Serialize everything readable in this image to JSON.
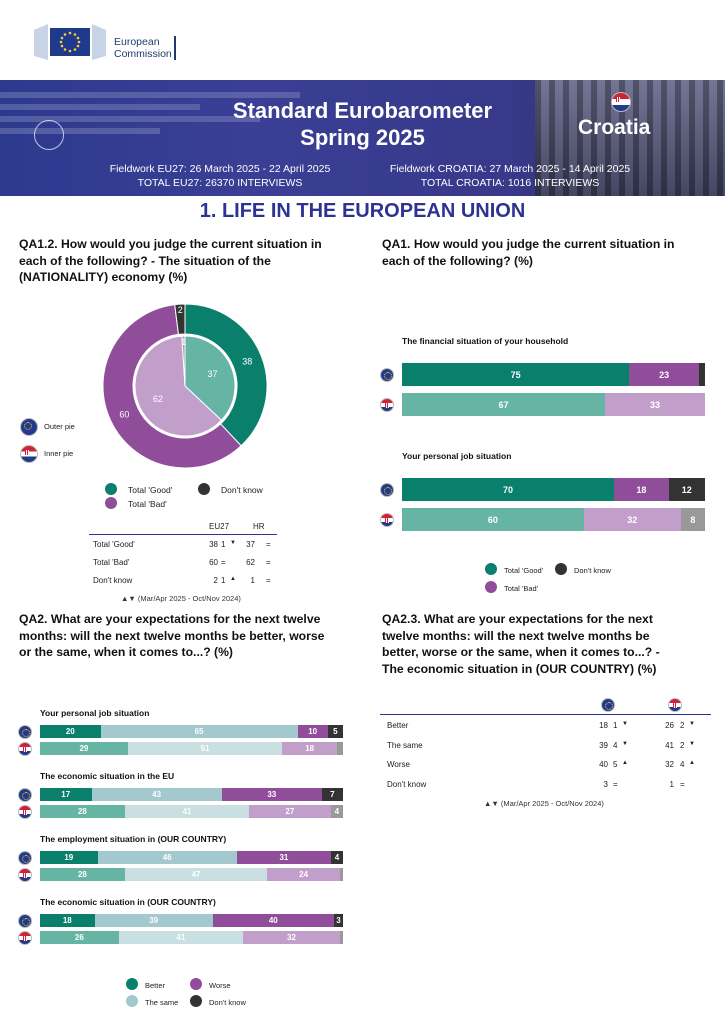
{
  "colors": {
    "better": "#0a7f6b",
    "good_eu": "#0a7f6b",
    "good_hr": "#66b5a4",
    "same_eu": "#a3c9cf",
    "same_hr": "#c9dfe2",
    "bad_eu": "#8f4d9a",
    "bad_hr": "#c29fca",
    "dk_eu": "#333333",
    "dk_hr": "#999999",
    "banner": "#2e3a8e",
    "title": "#2d3394"
  },
  "logo": {
    "line1": "European",
    "line2": "Commission"
  },
  "banner": {
    "title_line1": "Standard Eurobarometer",
    "title_line2": "Spring 2025",
    "country": "Croatia",
    "fieldwork_eu_1": "Fieldwork EU27: 26 March 2025 - 22 April 2025",
    "fieldwork_eu_2": "TOTAL EU27: 26370 INTERVIEWS",
    "fieldwork_hr_1": "Fieldwork CROATIA: 27 March 2025 - 14 April 2025",
    "fieldwork_hr_2": "TOTAL CROATIA: 1016 INTERVIEWS"
  },
  "section_title": "1. LIFE IN THE EUROPEAN UNION",
  "qa12": {
    "q_line1": "QA1.2. How would you judge the current situation in",
    "q_line2": "each of the following? - The situation of the",
    "q_line3": "(NATIONALITY) economy (%)",
    "outer_label": "Outer pie",
    "inner_label": "Inner pie",
    "legend_good": "Total 'Good'",
    "legend_bad": "Total 'Bad'",
    "legend_dk": "Don't know",
    "col_eu": "EU27",
    "col_hr": "HR",
    "rows": [
      {
        "label": "Total 'Good'",
        "eu": "38",
        "eu_change": "1",
        "eu_arrow": "▼",
        "hr": "37",
        "hr_change": "=",
        "hr_arrow": ""
      },
      {
        "label": "Total 'Bad'",
        "eu": "60",
        "eu_change": "=",
        "eu_arrow": "",
        "hr": "62",
        "hr_change": "=",
        "hr_arrow": ""
      },
      {
        "label": "Don't know",
        "eu": "2",
        "eu_change": "1",
        "eu_arrow": "▲",
        "hr": "1",
        "hr_change": "=",
        "hr_arrow": ""
      }
    ],
    "note": "▲▼ (Mar/Apr 2025 - Oct/Nov 2024)"
  },
  "chart_data": [
    {
      "type": "pie",
      "title": "QA1.2 The situation of the (NATIONALITY) economy (%)",
      "series": [
        {
          "name": "Outer pie",
          "categories": [
            "Total 'Good'",
            "Total 'Bad'",
            "Don't know"
          ],
          "values": [
            38,
            60,
            2
          ]
        },
        {
          "name": "Inner pie",
          "categories": [
            "Total 'Good'",
            "Total 'Bad'",
            "Don't know"
          ],
          "values": [
            37,
            62,
            1
          ]
        }
      ]
    },
    {
      "type": "bar",
      "stacked": true,
      "title": "QA1 How would you judge the current situation in each of the following? (%)",
      "categories": [
        "The financial situation of your household",
        "Your personal job situation"
      ],
      "series": [
        {
          "name": "Total 'Good'",
          "eu": [
            75,
            70
          ],
          "hr": [
            67,
            60
          ]
        },
        {
          "name": "Total 'Bad'",
          "eu": [
            23,
            18
          ],
          "hr": [
            33,
            32
          ]
        },
        {
          "name": "Don't know",
          "eu": [
            2,
            12
          ],
          "hr": [
            0,
            8
          ]
        }
      ]
    },
    {
      "type": "bar",
      "stacked": true,
      "title": "QA2 Expectations for the next twelve months (%)",
      "categories": [
        "Your personal job situation",
        "The economic situation in the EU",
        "The employment situation in (OUR COUNTRY)",
        "The economic situation in (OUR COUNTRY)"
      ],
      "series": [
        {
          "name": "Better",
          "eu": [
            20,
            17,
            19,
            18
          ],
          "hr": [
            29,
            28,
            28,
            26
          ]
        },
        {
          "name": "The same",
          "eu": [
            65,
            43,
            46,
            39
          ],
          "hr": [
            51,
            41,
            47,
            41
          ]
        },
        {
          "name": "Worse",
          "eu": [
            10,
            33,
            31,
            40
          ],
          "hr": [
            18,
            27,
            24,
            32
          ]
        },
        {
          "name": "Don't know",
          "eu": [
            5,
            7,
            4,
            3
          ],
          "hr": [
            2,
            4,
            1,
            1
          ]
        }
      ]
    }
  ],
  "qa1": {
    "q_line1": "QA1. How would you judge the current situation in",
    "q_line2": "each of the following? (%)",
    "items": [
      {
        "title": "The financial situation of your household",
        "eu": [
          {
            "v": 75,
            "label": "75",
            "k": "good"
          },
          {
            "v": 23,
            "label": "23",
            "k": "bad"
          },
          {
            "v": 2,
            "label": "",
            "k": "dk"
          }
        ],
        "hr": [
          {
            "v": 67,
            "label": "67",
            "k": "good"
          },
          {
            "v": 33,
            "label": "33",
            "k": "bad"
          }
        ]
      },
      {
        "title": "Your personal job situation",
        "eu": [
          {
            "v": 70,
            "label": "70",
            "k": "good"
          },
          {
            "v": 18,
            "label": "18",
            "k": "bad"
          },
          {
            "v": 12,
            "label": "12",
            "k": "dk"
          }
        ],
        "hr": [
          {
            "v": 60,
            "label": "60",
            "k": "good"
          },
          {
            "v": 32,
            "label": "32",
            "k": "bad"
          },
          {
            "v": 8,
            "label": "8",
            "k": "dk"
          }
        ]
      }
    ],
    "legend_good": "Total 'Good'",
    "legend_bad": "Total 'Bad'",
    "legend_dk": "Don't know"
  },
  "qa2": {
    "q_line1": "QA2. What are your expectations for the next twelve",
    "q_line2": "months: will the next twelve months be better, worse",
    "q_line3": "or the same, when it comes to...? (%)",
    "items": [
      {
        "title": "Your personal job situation",
        "eu": [
          {
            "v": 20,
            "label": "20",
            "k": "better"
          },
          {
            "v": 65,
            "label": "65",
            "k": "same"
          },
          {
            "v": 10,
            "label": "10",
            "k": "worse"
          },
          {
            "v": 5,
            "label": "5",
            "k": "dk"
          }
        ],
        "hr": [
          {
            "v": 29,
            "label": "29",
            "k": "better"
          },
          {
            "v": 51,
            "label": "51",
            "k": "same"
          },
          {
            "v": 18,
            "label": "18",
            "k": "worse"
          },
          {
            "v": 2,
            "label": "",
            "k": "dk"
          }
        ]
      },
      {
        "title": "The economic situation in the EU",
        "eu": [
          {
            "v": 17,
            "label": "17",
            "k": "better"
          },
          {
            "v": 43,
            "label": "43",
            "k": "same"
          },
          {
            "v": 33,
            "label": "33",
            "k": "worse"
          },
          {
            "v": 7,
            "label": "7",
            "k": "dk"
          }
        ],
        "hr": [
          {
            "v": 28,
            "label": "28",
            "k": "better"
          },
          {
            "v": 41,
            "label": "41",
            "k": "same"
          },
          {
            "v": 27,
            "label": "27",
            "k": "worse"
          },
          {
            "v": 4,
            "label": "4",
            "k": "dk"
          }
        ]
      },
      {
        "title": "The employment situation in (OUR COUNTRY)",
        "eu": [
          {
            "v": 19,
            "label": "19",
            "k": "better"
          },
          {
            "v": 46,
            "label": "46",
            "k": "same"
          },
          {
            "v": 31,
            "label": "31",
            "k": "worse"
          },
          {
            "v": 4,
            "label": "4",
            "k": "dk"
          }
        ],
        "hr": [
          {
            "v": 28,
            "label": "28",
            "k": "better"
          },
          {
            "v": 47,
            "label": "47",
            "k": "same"
          },
          {
            "v": 24,
            "label": "24",
            "k": "worse"
          },
          {
            "v": 1,
            "label": "",
            "k": "dk"
          }
        ]
      },
      {
        "title": "The economic situation in (OUR COUNTRY)",
        "eu": [
          {
            "v": 18,
            "label": "18",
            "k": "better"
          },
          {
            "v": 39,
            "label": "39",
            "k": "same"
          },
          {
            "v": 40,
            "label": "40",
            "k": "worse"
          },
          {
            "v": 3,
            "label": "3",
            "k": "dk"
          }
        ],
        "hr": [
          {
            "v": 26,
            "label": "26",
            "k": "better"
          },
          {
            "v": 41,
            "label": "41",
            "k": "same"
          },
          {
            "v": 32,
            "label": "32",
            "k": "worse"
          },
          {
            "v": 1,
            "label": "",
            "k": "dk"
          }
        ]
      }
    ],
    "legend_better": "Better",
    "legend_same": "The same",
    "legend_worse": "Worse",
    "legend_dk": "Don't know"
  },
  "qa23": {
    "q_line1": "QA2.3. What are your expectations for the next",
    "q_line2": "twelve months: will the next twelve months be",
    "q_line3": "better, worse or the same, when it comes to...? -",
    "q_line4": "The economic situation in (OUR COUNTRY) (%)",
    "rows": [
      {
        "label": "Better",
        "eu": "18",
        "eu_change": "1",
        "eu_arrow": "▼",
        "hr": "26",
        "hr_change": "2",
        "hr_arrow": "▼"
      },
      {
        "label": "The same",
        "eu": "39",
        "eu_change": "4",
        "eu_arrow": "▼",
        "hr": "41",
        "hr_change": "2",
        "hr_arrow": "▼"
      },
      {
        "label": "Worse",
        "eu": "40",
        "eu_change": "5",
        "eu_arrow": "▲",
        "hr": "32",
        "hr_change": "4",
        "hr_arrow": "▲"
      },
      {
        "label": "Don't know",
        "eu": "3",
        "eu_change": "=",
        "eu_arrow": "",
        "hr": "1",
        "hr_change": "=",
        "hr_arrow": ""
      }
    ],
    "note": "▲▼ (Mar/Apr 2025 - Oct/Nov 2024)"
  }
}
